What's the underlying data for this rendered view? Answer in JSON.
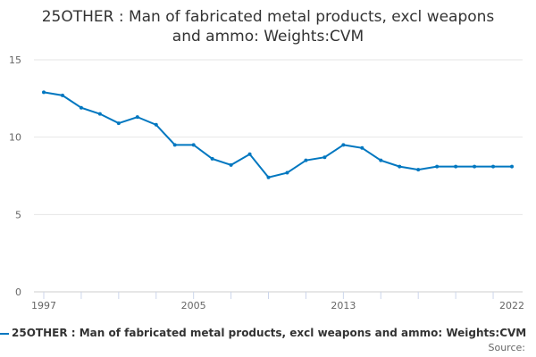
{
  "chart_data": {
    "type": "line",
    "title": "25OTHER : Man of fabricated metal products, excl weapons and ammo: Weights:CVM",
    "title_lines": [
      "25OTHER : Man of fabricated metal products, excl weapons",
      "and ammo: Weights:CVM"
    ],
    "x": [
      1997,
      1998,
      1999,
      2000,
      2001,
      2002,
      2003,
      2004,
      2005,
      2006,
      2007,
      2008,
      2009,
      2010,
      2011,
      2012,
      2013,
      2014,
      2015,
      2016,
      2017,
      2018,
      2019,
      2020,
      2021,
      2022
    ],
    "series": [
      {
        "name": "25OTHER : Man of fabricated metal products, excl weapons and ammo: Weights:CVM",
        "color": "#0077c0",
        "values": [
          12.9,
          12.7,
          11.9,
          11.5,
          10.9,
          11.3,
          10.8,
          9.5,
          9.5,
          8.6,
          8.2,
          8.9,
          7.4,
          7.7,
          8.5,
          8.7,
          9.5,
          9.3,
          8.5,
          8.1,
          7.9,
          8.1,
          8.1,
          8.1,
          8.1,
          8.1
        ]
      }
    ],
    "xticks": [
      "1997",
      "2005",
      "2013",
      "2022"
    ],
    "yticks": [
      "0",
      "5",
      "10",
      "15"
    ],
    "ylim": [
      0,
      15
    ],
    "xlabel": "",
    "ylabel": "",
    "grid": true,
    "legend_position": "bottom"
  },
  "source_label": "Source:"
}
